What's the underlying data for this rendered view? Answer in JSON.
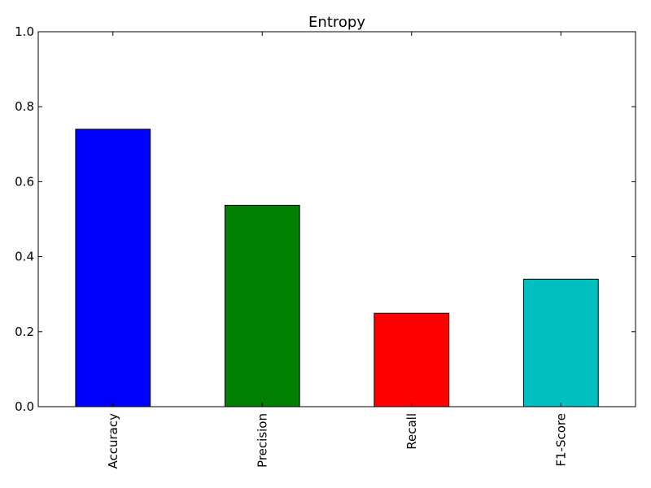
{
  "chart_data": {
    "type": "bar",
    "title": "Entropy",
    "xlabel": "",
    "ylabel": "",
    "categories": [
      "Accuracy",
      "Precision",
      "Recall",
      "F1-Score"
    ],
    "values": [
      0.74,
      0.537,
      0.249,
      0.34
    ],
    "colors": [
      "#0000ff",
      "#008000",
      "#ff0000",
      "#00bfbf"
    ],
    "ylim": [
      0,
      1.0
    ],
    "yticks": [
      "0.0",
      "0.2",
      "0.4",
      "0.6",
      "0.8",
      "1.0"
    ],
    "grid": false,
    "legend": "none"
  }
}
